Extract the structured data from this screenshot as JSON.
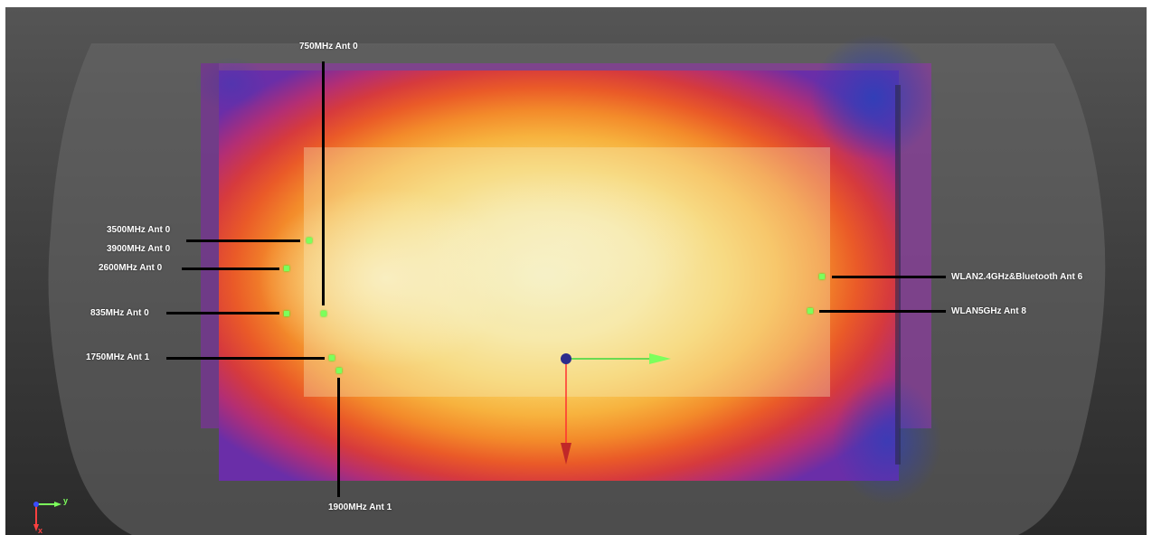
{
  "antennas": {
    "ant_750": {
      "label": "750MHz Ant 0"
    },
    "ant_3500": {
      "label": "3500MHz Ant 0"
    },
    "ant_3900": {
      "label": "3900MHz Ant 0"
    },
    "ant_2600": {
      "label": "2600MHz Ant 0"
    },
    "ant_835": {
      "label": "835MHz Ant 0"
    },
    "ant_1750": {
      "label": "1750MHz Ant 1"
    },
    "ant_1900": {
      "label": "1900MHz Ant 1"
    },
    "ant_wlan24": {
      "label": "WLAN2.4GHz&Bluetooth Ant 6"
    },
    "ant_wlan5": {
      "label": "WLAN5GHz Ant 8"
    }
  },
  "triad": {
    "y_label": "y",
    "x_label": "x"
  },
  "colors": {
    "marker": "#7cff5c",
    "leader": "#000000",
    "axis_x": "#ff4040",
    "axis_y": "#7cff5c",
    "axis_z": "#3a4cff"
  }
}
